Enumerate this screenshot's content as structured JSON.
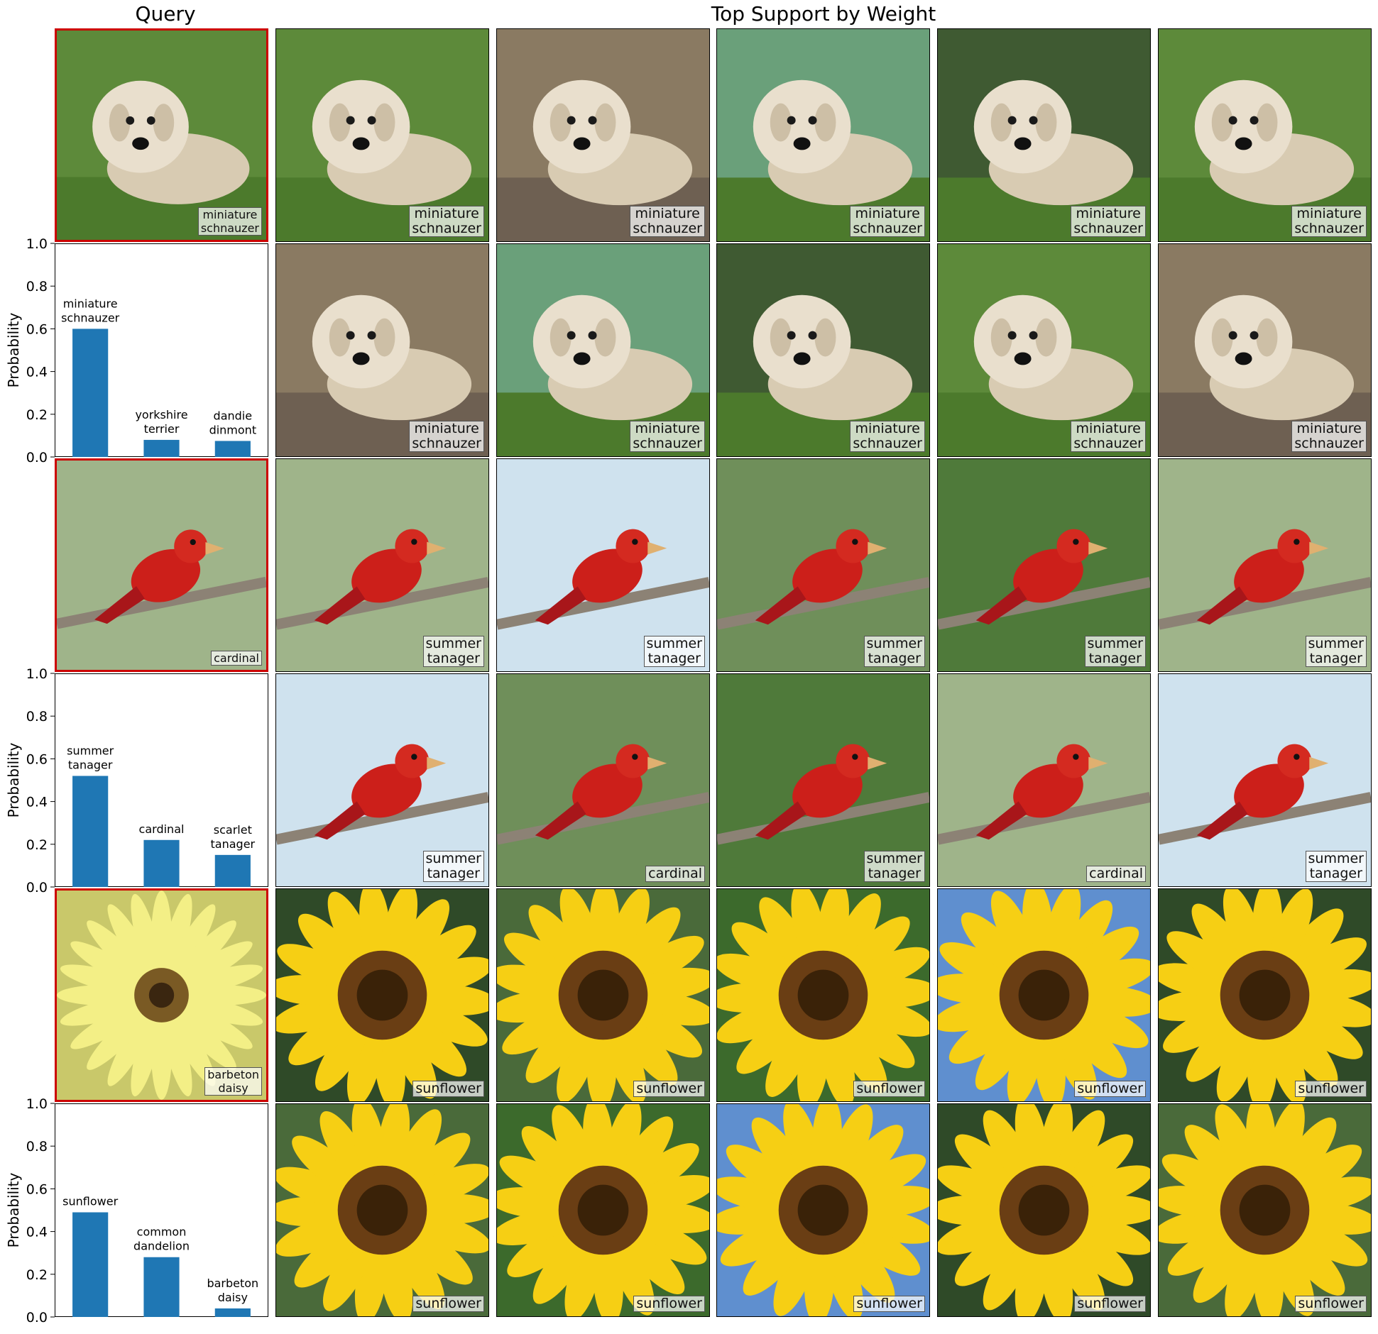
{
  "titles": {
    "query": "Query",
    "support": "Top Support by Weight"
  },
  "chart_data": [
    {
      "type": "bar",
      "ylabel": "Probability",
      "ylim": [
        0,
        1
      ],
      "yticks": [
        "0.0",
        "0.2",
        "0.4",
        "0.6",
        "0.8",
        "1.0"
      ],
      "categories": [
        "miniature\nschnauzer",
        "yorkshire\nterrier",
        "dandie\ndinmont"
      ],
      "values": [
        0.6,
        0.08,
        0.075
      ],
      "query": {
        "label": "miniature\nschnauzer",
        "image": "dog-photo"
      },
      "support": [
        "miniature\nschnauzer",
        "miniature\nschnauzer",
        "miniature\nschnauzer",
        "miniature\nschnauzer",
        "miniature\nschnauzer",
        "miniature\nschnauzer",
        "miniature\nschnauzer",
        "miniature\nschnauzer",
        "miniature\nschnauzer",
        "miniature\nschnauzer"
      ],
      "support_image": "dog-photo"
    },
    {
      "type": "bar",
      "ylabel": "Probability",
      "ylim": [
        0,
        1
      ],
      "yticks": [
        "0.0",
        "0.2",
        "0.4",
        "0.6",
        "0.8",
        "1.0"
      ],
      "categories": [
        "summer\ntanager",
        "cardinal",
        "scarlet\ntanager"
      ],
      "values": [
        0.52,
        0.22,
        0.15
      ],
      "query": {
        "label": "cardinal",
        "image": "bird-photo"
      },
      "support": [
        "summer\ntanager",
        "summer\ntanager",
        "summer\ntanager",
        "summer\ntanager",
        "summer\ntanager",
        "summer\ntanager",
        "cardinal",
        "summer\ntanager",
        "cardinal",
        "summer\ntanager"
      ],
      "support_image": "bird-photo"
    },
    {
      "type": "bar",
      "ylabel": "Probability",
      "ylim": [
        0,
        1
      ],
      "yticks": [
        "0.0",
        "0.2",
        "0.4",
        "0.6",
        "0.8",
        "1.0"
      ],
      "categories": [
        "sunflower",
        "common\ndandelion",
        "barbeton\ndaisy"
      ],
      "values": [
        0.49,
        0.28,
        0.04
      ],
      "query": {
        "label": "barbeton\ndaisy",
        "image": "daisy-photo"
      },
      "support": [
        "sunflower",
        "sunflower",
        "sunflower",
        "sunflower",
        "sunflower",
        "sunflower",
        "sunflower",
        "sunflower",
        "sunflower",
        "sunflower"
      ],
      "support_image": "sunflower-photo"
    }
  ],
  "colors": {
    "bar": "#1f77b4",
    "query_border": "#cc0000"
  }
}
